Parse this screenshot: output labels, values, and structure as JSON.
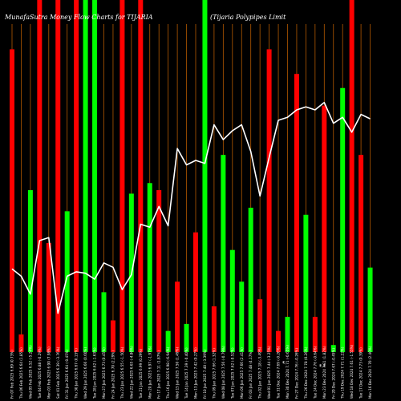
{
  "chart_data": {
    "type": "bar",
    "title_left": "MunafaSutra  Money Flow Charts for TIJARIA",
    "title_right": "(Tijaria  Polypipes Limit",
    "categories": [
      "Fri 07 Feb 2025",
      "Thu 06 Feb 2025",
      "Wed 05 Feb 2025",
      "Tue 04 Feb 2025",
      "Mon 03 Feb 2025",
      "Sat 01 Feb 2025",
      "Fri 31 Jan 2025",
      "Thu 30 Jan 2025",
      "Wed 29 Jan 2025",
      "Tue 28 Jan 2025",
      "Mon 27 Jan 2025",
      "Fri 24 Jan 2025",
      "Thu 23 Jan 2025",
      "Wed 22 Jan 2025",
      "Tue 21 Jan 2025",
      "Mon 20 Jan 2025",
      "Fri 17 Jan 2025",
      "Thu 16 Jan 2025",
      "Wed 15 Jan 2025",
      "Tue 14 Jan 2025",
      "Mon 13 Jan 2025",
      "Fri 10 Jan 2025",
      "Thu 09 Jan 2025",
      "Wed 08 Jan 2025",
      "Tue 07 Jan 2025",
      "Mon 06 Jan 2025",
      "Fri 03 Jan 2025",
      "Thu 02 Jan 2025",
      "Wed 01 Jan 2025",
      "Tue 31 Dec 2024",
      "Mon 30 Dec 2024",
      "Fri 27 Dec 2024",
      "Thu 26 Dec 2024",
      "Tue 24 Dec 2024",
      "Mon 23 Dec 2024",
      "Fri 20 Dec 2024",
      "Thu 19 Dec 2024",
      "Wed 18 Dec 2024",
      "Tue 17 Dec 2024",
      "Mon 16 Dec 2024"
    ],
    "price_labels": [
      "6.69 (0.73%)",
      "6.64 (1.85%)",
      "6.52 (-5.24%)",
      "6.88 (-0.29%)",
      "6.90 (7.98%)",
      "6.39 (-3.76%)",
      "6.64 (-0.45%)",
      "6.67 (0.15%)",
      "6.66 (0.60%)",
      "6.62 (-1.63%)",
      "6.73 (0.45%)",
      "6.70 (2.29%)",
      "6.55 (-1.50%)",
      "6.65 (-4.86%)",
      "6.99 (0.29%)",
      "6.97 (-1.97%)",
      "7.11 (1.87%)",
      "6.98 (-6.94%)",
      "7.50 (1.49%)",
      "7.39 (-0.40%)",
      "7.42 (0.27%)",
      "7.40 (-3.39%)",
      "7.66 (1.32%)",
      "7.56 (-0.79%)",
      "7.62 (-0.52%)",
      "7.66 (2.41%)",
      "7.48 (4.17%)",
      "7.18 (-3.49%)",
      "7.44 (-3.25%)",
      "7.69 (-0.26%)",
      "7.71 (-0.65%)",
      "7.76 (-0.26%)",
      "7.78 (0.26%)",
      "7.76 (-0.64%)",
      "7.81 (1.82%)",
      "7.67 (-0.45%)",
      "7.71 (1.22%)",
      "7.61 (-1.55%)",
      "7.73 (0.39%)",
      "7.70 (2.40%)"
    ],
    "colors": {
      "up": "#00ff00",
      "down": "#ff0000",
      "line": "#ffffff",
      "grid": "#b35900",
      "background": "#000000"
    },
    "series": [
      {
        "type": "bar",
        "values": [
          86,
          5,
          46,
          100,
          31,
          100,
          40,
          100,
          100,
          100,
          17,
          9,
          100,
          45,
          100,
          48,
          46,
          6,
          20,
          8,
          34,
          100,
          13,
          56,
          29,
          20,
          41,
          15,
          86,
          6,
          10,
          79,
          39,
          10,
          70,
          2,
          75,
          100,
          56,
          24
        ],
        "directions": [
          "down",
          "down",
          "up",
          "down",
          "down",
          "down",
          "up",
          "down",
          "up",
          "up",
          "up",
          "down",
          "down",
          "up",
          "down",
          "up",
          "down",
          "up",
          "down",
          "up",
          "down",
          "up",
          "down",
          "up",
          "up",
          "up",
          "up",
          "down",
          "down",
          "down",
          "up",
          "down",
          "up",
          "down",
          "down",
          "up",
          "up",
          "down",
          "down",
          "up"
        ]
      },
      {
        "type": "line",
        "values": [
          6.69,
          6.64,
          6.52,
          6.88,
          6.9,
          6.39,
          6.64,
          6.67,
          6.66,
          6.62,
          6.73,
          6.7,
          6.55,
          6.65,
          6.99,
          6.97,
          7.11,
          6.98,
          7.5,
          7.39,
          7.42,
          7.4,
          7.66,
          7.56,
          7.62,
          7.66,
          7.48,
          7.18,
          7.44,
          7.69,
          7.71,
          7.76,
          7.78,
          7.76,
          7.81,
          7.67,
          7.71,
          7.61,
          7.73,
          7.7
        ]
      }
    ],
    "bar_ylim": [
      0,
      100
    ],
    "line_ylim": [
      5.8,
      8.5
    ],
    "x_order": "newest-right",
    "grid": true,
    "annotations": [
      "₹",
      "₹ ₹"
    ]
  }
}
